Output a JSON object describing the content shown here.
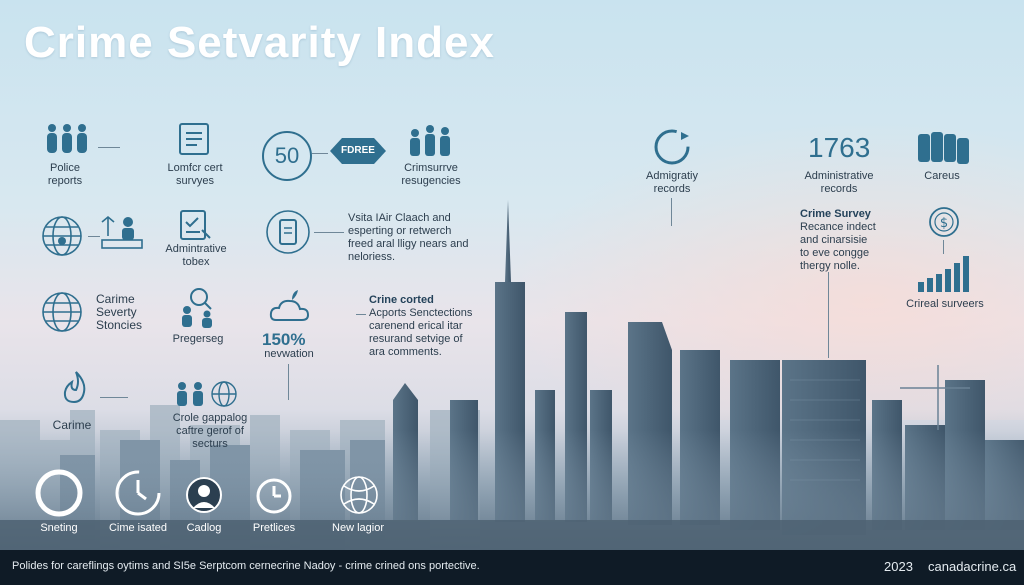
{
  "title": "Crime Setvarity Index",
  "items": {
    "police_reports": "Police\nreports",
    "lomfcr_cert": "Lomfcr cert\nsurvyes",
    "fifty": "50",
    "fdree_badge": "FDREE",
    "crimsurrve": "Crimsurrve\nresugencies",
    "admigratiy": "Admigratiy\nrecords",
    "num_1763": "1763",
    "administrative_records": "Administrative\nrecords",
    "careus": "Careus",
    "admintrative_tobex": "Admintrative\ntobex",
    "vsita_text": "Vsita IAir Claach and\nesperting or retwerch\nfreed aral lligy nears and\nneloriess.",
    "crime_survey_title": "Crime Survey",
    "crime_survey_text": "Recance indect\nand cinarsisie\nto eve congge\nthergy nolle.",
    "carime_severity": "Carime\nSeverty\nStoncies",
    "pregerseg": "Pregerseg",
    "percent_150": "150%",
    "nevwation": "nevwation",
    "crime_corted_title": "Crine corted",
    "crime_corted_text": "Acports Senctections\ncarenend erical itar\nresurand setvige of\nara comments.",
    "crireal_surveers": "Crireal surveers",
    "carime": "Carime",
    "crole_gappalog": "Crole gappalog\ncaftre gerof of\nsecturs"
  },
  "bottom_icons": [
    {
      "label": "Sneting",
      "icon": "ring-icon"
    },
    {
      "label": "Cime isated",
      "icon": "timer-icon"
    },
    {
      "label": "Cadlog",
      "icon": "officer-icon"
    },
    {
      "label": "Pretlices",
      "icon": "clock-icon"
    },
    {
      "label": "New lagior",
      "icon": "globe-icon"
    }
  ],
  "footer": {
    "text": "Polides for careflings oytims and SI5e Serptcom cernecrine Nadoy - crime crined ons portective.",
    "year": "2023",
    "site": "canadacrine.ca"
  },
  "colors": {
    "accent": "#2f6f8f",
    "text": "#2c3e4e",
    "footer": "#0f1b26"
  }
}
